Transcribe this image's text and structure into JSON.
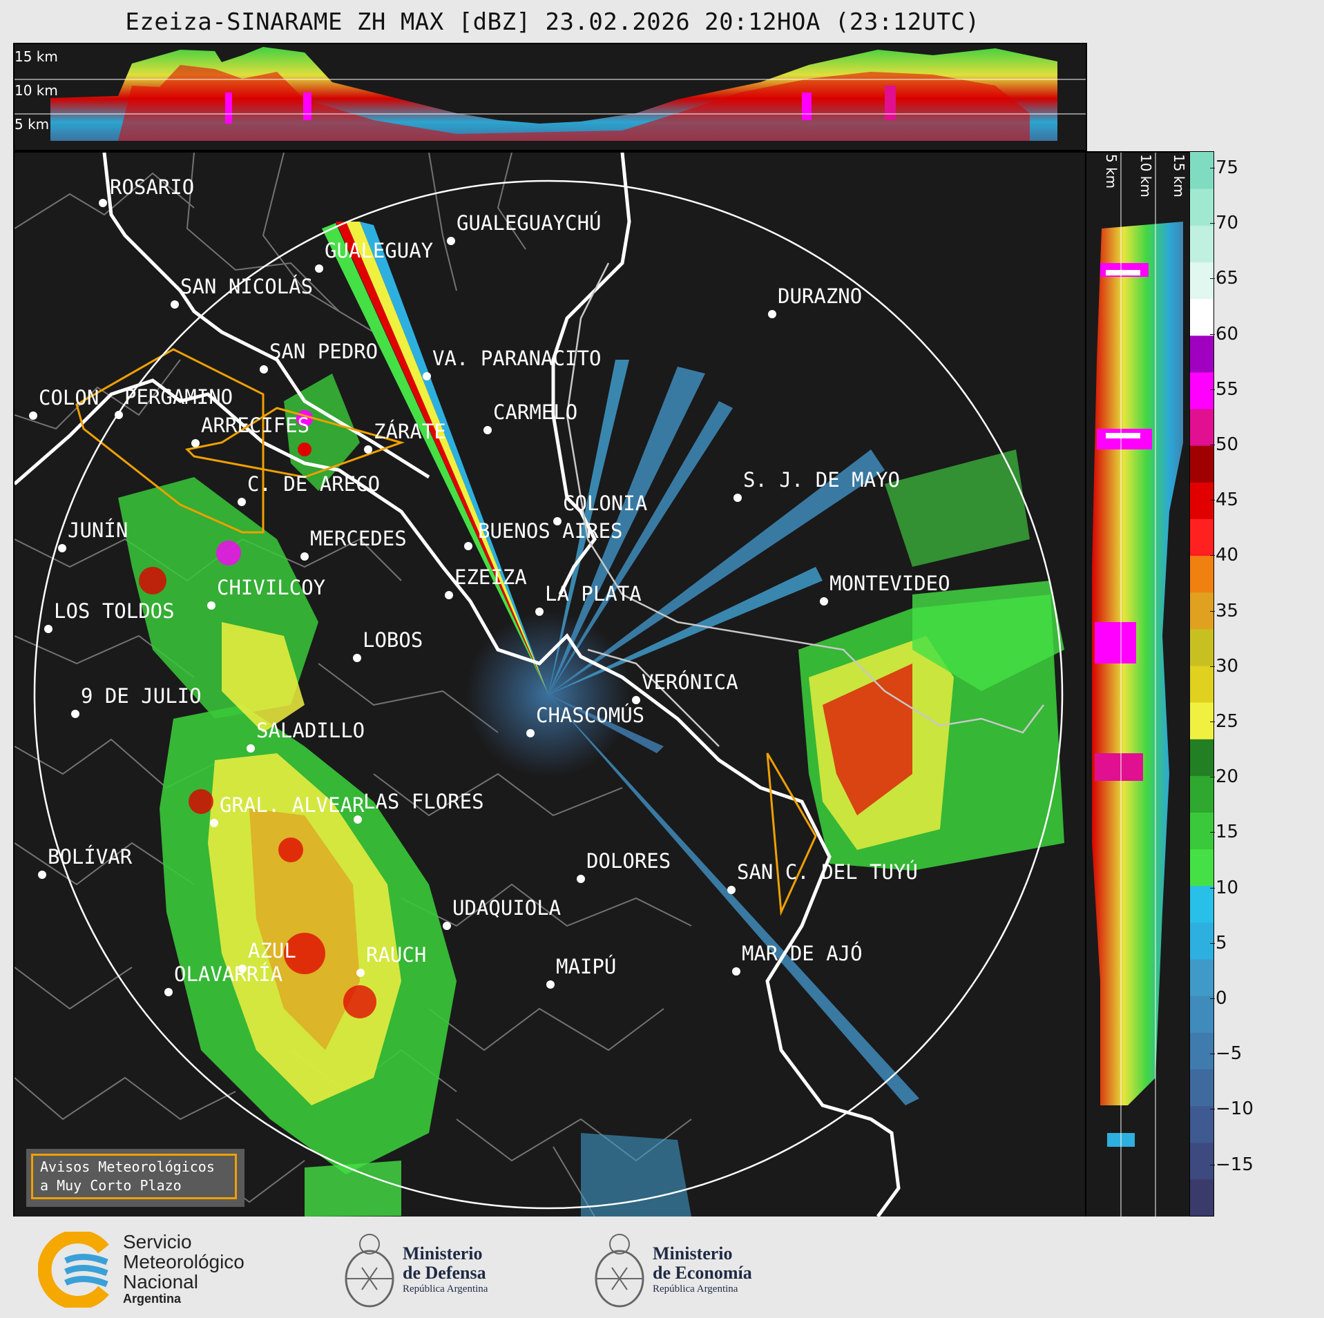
{
  "title": "Ezeiza-SINARAME ZH MAX [dBZ] 23.02.2026 20:12HOA (23:12UTC)",
  "top_profile": {
    "height_labels": [
      "15 km",
      "10 km",
      "5 km"
    ]
  },
  "right_profile": {
    "height_labels": [
      "5 km",
      "10 km",
      "15 km"
    ]
  },
  "colorbar": {
    "unit": "dBZ",
    "ticks": [
      "75",
      "70",
      "65",
      "60",
      "55",
      "50",
      "45",
      "40",
      "35",
      "30",
      "25",
      "20",
      "15",
      "10",
      "5",
      "0",
      "−5",
      "−10",
      "−15"
    ],
    "colors": [
      "#3a3b6b",
      "#3d4a80",
      "#3e5a90",
      "#3f6a9e",
      "#3f7bac",
      "#3f8bbb",
      "#3f9ac8",
      "#2db0e0",
      "#28c0e8",
      "#45e045",
      "#3ac93a",
      "#2fa82f",
      "#237f23",
      "#f0f040",
      "#e0d020",
      "#c8c020",
      "#e0a020",
      "#f08010",
      "#ff2020",
      "#e00000",
      "#a00000",
      "#e01090",
      "#ff00ff",
      "#a000c0",
      "#ffffff",
      "#e0f8f0",
      "#c0f0e0",
      "#a0e8d0",
      "#80dcc0"
    ]
  },
  "map": {
    "cities": [
      {
        "name": "ROSARIO"
      },
      {
        "name": "GUALEGUAYCHÚ"
      },
      {
        "name": "GUALEGUAY"
      },
      {
        "name": "SAN NICOLÁS"
      },
      {
        "name": "DURAZNO"
      },
      {
        "name": "SAN PEDRO"
      },
      {
        "name": "VA. PARANACITO"
      },
      {
        "name": "COLON"
      },
      {
        "name": "PERGAMINO"
      },
      {
        "name": "CARMELO"
      },
      {
        "name": "ARRECIFES"
      },
      {
        "name": "ZÁRATE"
      },
      {
        "name": "C. DE ARECO"
      },
      {
        "name": "S. J. DE MAYO"
      },
      {
        "name": "COLONIA"
      },
      {
        "name": "JUNÍN"
      },
      {
        "name": "BUENOS AIRES"
      },
      {
        "name": "MERCEDES"
      },
      {
        "name": "EZEIZA"
      },
      {
        "name": "MONTEVIDEO"
      },
      {
        "name": "CHIVILCOY"
      },
      {
        "name": "LA PLATA"
      },
      {
        "name": "LOS TOLDOS"
      },
      {
        "name": "LOBOS"
      },
      {
        "name": "VERÓNICA"
      },
      {
        "name": "9 DE JULIO"
      },
      {
        "name": "CHASCOMÚS"
      },
      {
        "name": "SALADILLO"
      },
      {
        "name": "GRAL. ALVEAR"
      },
      {
        "name": "LAS FLORES"
      },
      {
        "name": "BOLÍVAR"
      },
      {
        "name": "DOLORES"
      },
      {
        "name": "SAN C. DEL TUYÚ"
      },
      {
        "name": "UDAQUIOLA"
      },
      {
        "name": "AZUL"
      },
      {
        "name": "RAUCH"
      },
      {
        "name": "MAR DE AJÓ"
      },
      {
        "name": "OLAVARRÍA"
      },
      {
        "name": "MAIPÚ"
      }
    ],
    "notice": {
      "line1": "Avisos Meteorológicos",
      "line2": "a Muy Corto Plazo"
    }
  },
  "footer": {
    "smn": {
      "line1": "Servicio",
      "line2": "Meteorológico",
      "line3": "Nacional",
      "line4": "Argentina"
    },
    "defensa": {
      "line1": "Ministerio",
      "line2": "de Defensa",
      "line3": "República Argentina"
    },
    "economia": {
      "line1": "Ministerio",
      "line2": "de Economía",
      "line3": "República Argentina"
    }
  }
}
